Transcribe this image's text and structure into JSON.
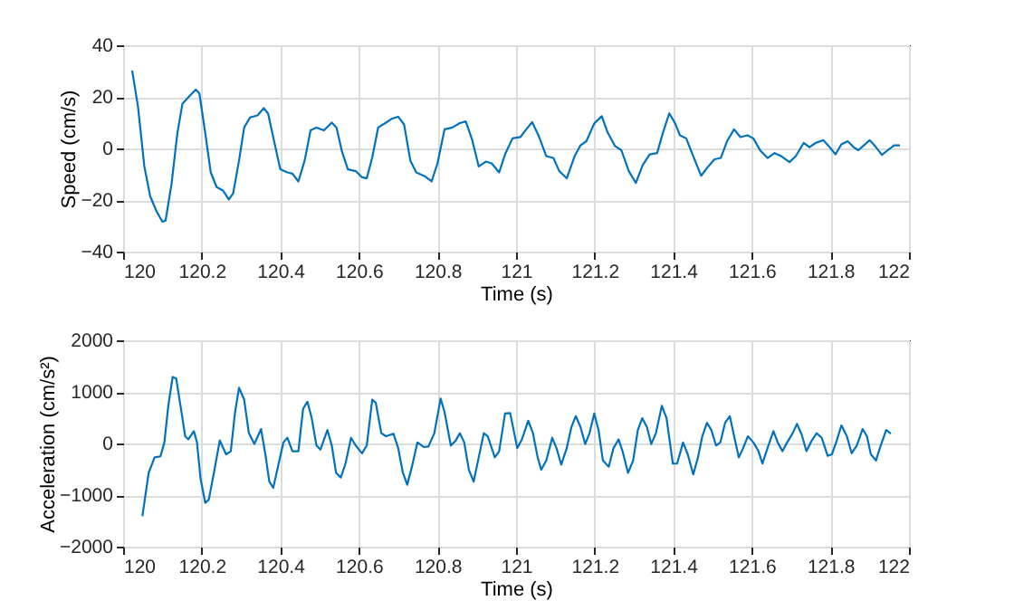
{
  "chart_data": [
    {
      "type": "line",
      "xlabel": "Time (s)",
      "ylabel": "Speed (cm/s)",
      "xlim": [
        120,
        122
      ],
      "xticks": [
        120,
        120.2,
        120.4,
        120.6,
        120.8,
        121,
        121.2,
        121.4,
        121.6,
        121.8,
        122
      ],
      "ylim": [
        -40,
        40
      ],
      "yticks": [
        -40,
        -20,
        0,
        20,
        40
      ],
      "grid": true,
      "x": [
        120.023,
        120.038,
        120.054,
        120.069,
        120.085,
        120.1,
        120.108,
        120.123,
        120.138,
        120.151,
        120.166,
        120.185,
        120.194,
        120.208,
        120.223,
        120.238,
        120.254,
        120.269,
        120.28,
        120.295,
        120.308,
        120.323,
        120.342,
        120.358,
        120.369,
        120.385,
        120.4,
        120.418,
        120.431,
        120.446,
        120.462,
        120.477,
        120.492,
        120.511,
        120.531,
        120.543,
        120.557,
        120.572,
        120.592,
        120.608,
        120.62,
        120.634,
        120.649,
        120.669,
        120.685,
        120.7,
        120.715,
        120.731,
        120.746,
        120.769,
        120.785,
        120.8,
        120.818,
        120.838,
        120.857,
        120.872,
        120.888,
        120.905,
        120.923,
        120.938,
        120.957,
        120.972,
        120.991,
        121.011,
        121.026,
        121.041,
        121.057,
        121.077,
        121.095,
        121.11,
        121.129,
        121.149,
        121.164,
        121.179,
        121.199,
        121.218,
        121.233,
        121.252,
        121.268,
        121.287,
        121.305,
        121.322,
        121.34,
        121.359,
        121.374,
        121.39,
        121.405,
        121.417,
        121.433,
        121.451,
        121.471,
        121.486,
        121.505,
        121.521,
        121.537,
        121.555,
        121.571,
        121.589,
        121.604,
        121.621,
        121.64,
        121.658,
        121.675,
        121.696,
        121.712,
        121.732,
        121.747,
        121.762,
        121.782,
        121.798,
        121.813,
        121.828,
        121.844,
        121.859,
        121.871,
        121.885,
        121.9,
        121.916,
        121.931,
        121.946,
        121.962,
        121.977
      ],
      "series": [
        {
          "color": "#0072bd",
          "values": [
            30.2,
            16,
            -7,
            -18.6,
            -24.4,
            -28.4,
            -28,
            -14,
            5.8,
            17.4,
            19.8,
            22.8,
            21.4,
            7,
            -9.3,
            -15,
            -16.3,
            -19.8,
            -17.4,
            -4.7,
            8.1,
            12,
            12.8,
            15.6,
            13.5,
            2.3,
            -8.1,
            -9.3,
            -9.8,
            -12.8,
            -4.7,
            7,
            8.1,
            7,
            10,
            8.1,
            -1.2,
            -8.1,
            -8.8,
            -11.2,
            -11.6,
            -3.5,
            8.1,
            10,
            11.6,
            12.3,
            9.3,
            -4.7,
            -9.3,
            -10.9,
            -12.8,
            -5.8,
            7.4,
            8.1,
            9.8,
            10.5,
            3.5,
            -7,
            -5.1,
            -5.8,
            -9.3,
            -2.3,
            3.9,
            4.4,
            7.4,
            10.2,
            5.1,
            -3,
            -3.7,
            -8.8,
            -11.6,
            -3,
            1.2,
            2.8,
            9.7,
            12.5,
            6.2,
            0.9,
            -0.7,
            -8.8,
            -13.4,
            -6.5,
            -2.3,
            -1.8,
            6.2,
            13.6,
            9.7,
            5.1,
            3.9,
            -3,
            -10.6,
            -7.6,
            -4.2,
            -3.7,
            2.8,
            7.4,
            4.4,
            5.1,
            3.9,
            -0.7,
            -3.7,
            -1.8,
            -3,
            -5.3,
            -3,
            2.1,
            0.5,
            2.1,
            3.2,
            0.5,
            -2.3,
            1.6,
            2.8,
            0.5,
            -0.7,
            1.2,
            3.2,
            0.5,
            -2.5,
            -0.7,
            1.2,
            1.2
          ]
        }
      ]
    },
    {
      "type": "line",
      "xlabel": "Time (s)",
      "ylabel": "Acceleration (cm/s²)",
      "xlim": [
        120,
        122
      ],
      "xticks": [
        120,
        120.2,
        120.4,
        120.6,
        120.8,
        121,
        121.2,
        121.4,
        121.6,
        121.8,
        122
      ],
      "ylim": [
        -2000,
        2000
      ],
      "yticks": [
        -2000,
        -1000,
        0,
        1000,
        2000
      ],
      "grid": true,
      "x": [
        120.049,
        120.065,
        120.08,
        120.095,
        120.105,
        120.115,
        120.126,
        120.135,
        120.146,
        120.158,
        120.166,
        120.18,
        120.188,
        120.197,
        120.209,
        120.218,
        120.231,
        120.246,
        120.262,
        120.274,
        120.285,
        120.295,
        120.308,
        120.32,
        120.334,
        120.351,
        120.362,
        120.372,
        120.382,
        120.394,
        120.408,
        120.418,
        120.431,
        120.446,
        120.458,
        120.469,
        120.48,
        120.492,
        120.502,
        120.52,
        120.531,
        120.542,
        120.554,
        120.566,
        120.58,
        120.592,
        120.608,
        120.62,
        120.634,
        120.643,
        120.657,
        120.669,
        120.688,
        120.7,
        120.712,
        120.723,
        120.735,
        120.749,
        120.765,
        120.777,
        120.792,
        120.808,
        120.818,
        120.834,
        120.846,
        120.857,
        120.868,
        120.88,
        120.892,
        120.905,
        120.918,
        120.928,
        120.946,
        120.957,
        120.972,
        120.985,
        121.003,
        121.015,
        121.031,
        121.043,
        121.055,
        121.064,
        121.077,
        121.092,
        121.103,
        121.115,
        121.129,
        121.141,
        121.152,
        121.164,
        121.176,
        121.187,
        121.199,
        121.21,
        121.221,
        121.236,
        121.248,
        121.261,
        121.271,
        121.285,
        121.298,
        121.31,
        121.321,
        121.333,
        121.344,
        121.356,
        121.371,
        121.383,
        121.399,
        121.41,
        121.425,
        121.437,
        121.451,
        121.463,
        121.474,
        121.486,
        121.497,
        121.509,
        121.52,
        121.532,
        121.544,
        121.555,
        121.567,
        121.578,
        121.59,
        121.604,
        121.617,
        121.627,
        121.64,
        121.655,
        121.666,
        121.678,
        121.69,
        121.704,
        121.715,
        121.727,
        121.739,
        121.752,
        121.765,
        121.778,
        121.793,
        121.804,
        121.816,
        121.828,
        121.842,
        121.854,
        121.867,
        121.882,
        121.893,
        121.903,
        121.916,
        121.928,
        121.942,
        121.954
      ],
      "series": [
        {
          "color": "#0072bd",
          "values": [
            -1410,
            -570,
            -270,
            -250,
            20,
            730,
            1290,
            1260,
            730,
            140,
            80,
            240,
            20,
            -680,
            -1150,
            -1090,
            -570,
            60,
            -210,
            -150,
            610,
            1080,
            850,
            200,
            -10,
            280,
            -210,
            -740,
            -860,
            -450,
            20,
            110,
            -150,
            -150,
            670,
            810,
            490,
            -40,
            -120,
            260,
            -40,
            -570,
            -660,
            -390,
            110,
            -40,
            -190,
            -40,
            850,
            790,
            200,
            140,
            190,
            -90,
            -570,
            -800,
            -450,
            20,
            -70,
            -60,
            200,
            870,
            610,
            -40,
            50,
            200,
            20,
            -510,
            -740,
            -270,
            200,
            140,
            -270,
            -150,
            580,
            590,
            -90,
            80,
            440,
            200,
            -270,
            -510,
            -330,
            110,
            -90,
            -410,
            -90,
            320,
            530,
            320,
            -10,
            200,
            580,
            260,
            -330,
            -450,
            -90,
            80,
            -150,
            -570,
            -330,
            260,
            490,
            320,
            -10,
            200,
            730,
            490,
            -390,
            -390,
            20,
            -210,
            -600,
            -270,
            140,
            400,
            260,
            -40,
            20,
            400,
            530,
            140,
            -270,
            -90,
            140,
            20,
            -150,
            -390,
            -90,
            240,
            20,
            -150,
            20,
            200,
            380,
            170,
            -150,
            50,
            200,
            110,
            -240,
            -210,
            50,
            350,
            140,
            -190,
            -40,
            280,
            140,
            -210,
            -330,
            -40,
            260,
            190
          ]
        }
      ]
    }
  ]
}
